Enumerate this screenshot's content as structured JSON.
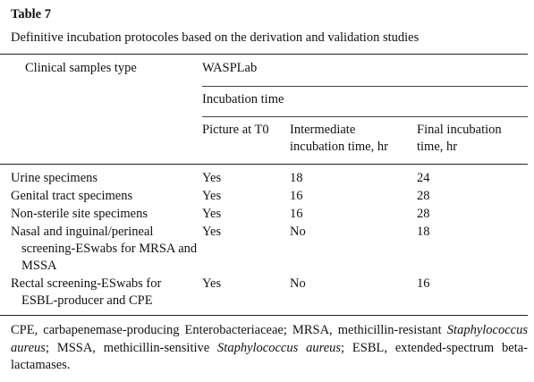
{
  "table_label": "Table 7",
  "caption": "Definitive incubation protocoles based on the derivation and validation studies",
  "header": {
    "first_column": "Clinical samples type",
    "group": "WASPLab",
    "subgroup": "Incubation time",
    "columns": [
      "Picture at T0",
      "Intermediate incubation time, hr",
      "Final incubation time, hr"
    ]
  },
  "rows": [
    [
      "Urine specimens",
      "Yes",
      18,
      24
    ],
    [
      "Genital tract specimens",
      "Yes",
      16,
      28
    ],
    [
      "Non-sterile site specimens",
      "Yes",
      16,
      28
    ],
    [
      "Nasal and inguinal/perineal screening-ESwabs for MRSA and MSSA",
      "Yes",
      "No",
      18
    ],
    [
      "Rectal screening-ESwabs for ESBL-producer and CPE",
      "Yes",
      "No",
      16
    ]
  ],
  "footnote": [
    "CPE, carbapenemase-producing Enterobacteriaceae; MRSA, methicillin-resistant ",
    "Staphylococcus aureus",
    "; MSSA, methicillin-sensitive ",
    "Staphylococcus aureus",
    "; ESBL, extended-spectrum beta-lactamases."
  ]
}
